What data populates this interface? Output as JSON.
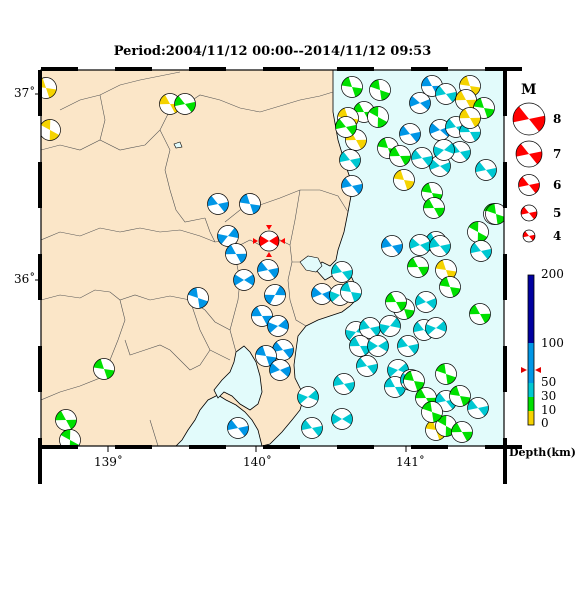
{
  "title": "Period:2004/11/12 00:00--2014/11/12 09:53",
  "lat_labels": [
    "37˚",
    "36˚"
  ],
  "lon_labels": [
    "139˚",
    "140˚",
    "141˚"
  ],
  "magnitude_legend": {
    "title": "M",
    "items": [
      "8",
      "7",
      "6",
      "5",
      "4"
    ]
  },
  "depth_scale": {
    "ticks": [
      "200",
      "100",
      "50",
      "30",
      "10",
      "0"
    ],
    "unit_label": "Depth(km)"
  },
  "colors": {
    "land": "#fbe6c8",
    "sea": "#e2fbfb",
    "shallow_0_10": "#f5d300",
    "depth_10_30": "#00e000",
    "depth_30_50": "#00c8d2",
    "depth_50_100": "#0096e6",
    "deep_100_200": "#0000a0",
    "main_event": "#ff0000"
  },
  "main_event": {
    "lon": 140.08,
    "lat": 36.1
  }
}
